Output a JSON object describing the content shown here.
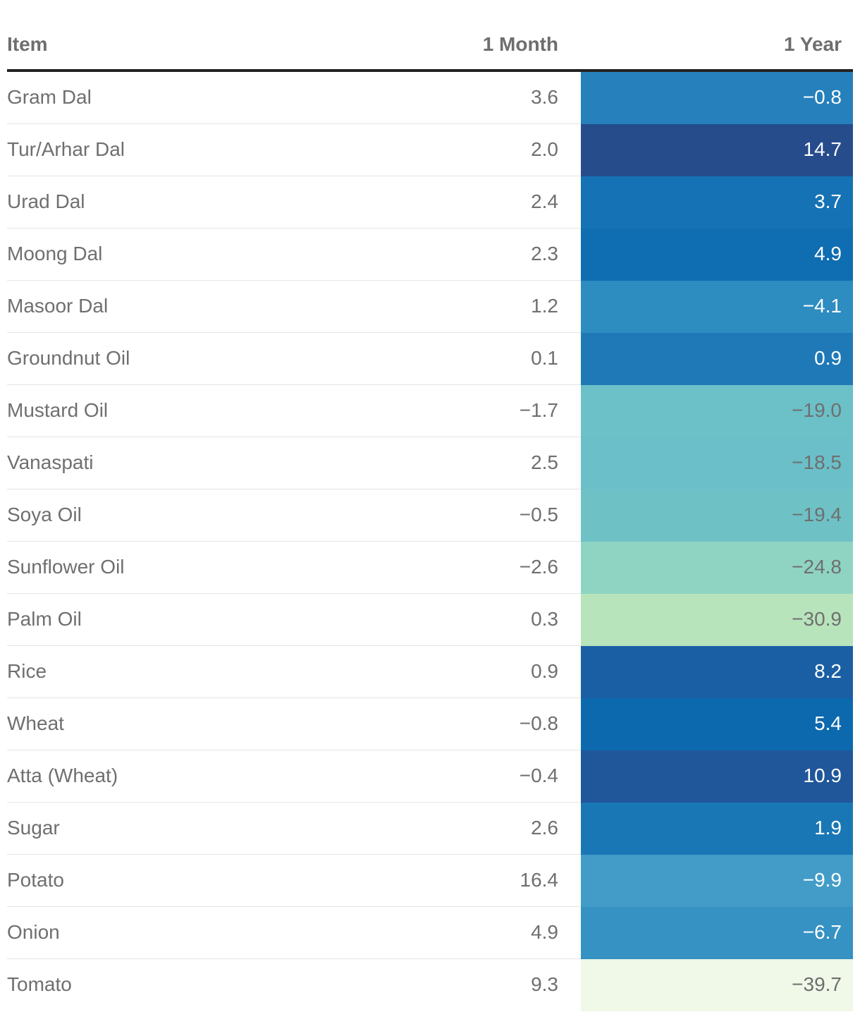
{
  "chart_data": {
    "type": "table",
    "columns": [
      "Item",
      "1 Month",
      "1 Year"
    ],
    "rows": [
      {
        "item": "Gram Dal",
        "month": "3.6",
        "year": "−0.8",
        "year_value": -0.8,
        "color": "#2580bb",
        "text_color": "#ffffff"
      },
      {
        "item": "Tur/Arhar Dal",
        "month": "2.0",
        "year": "14.7",
        "year_value": 14.7,
        "color": "#264c8c",
        "text_color": "#ffffff"
      },
      {
        "item": "Urad Dal",
        "month": "2.4",
        "year": "3.7",
        "year_value": 3.7,
        "color": "#1572b4",
        "text_color": "#ffffff"
      },
      {
        "item": "Moong Dal",
        "month": "2.3",
        "year": "4.9",
        "year_value": 4.9,
        "color": "#0f6db1",
        "text_color": "#ffffff"
      },
      {
        "item": "Masoor Dal",
        "month": "1.2",
        "year": "−4.1",
        "year_value": -4.1,
        "color": "#2d8cc0",
        "text_color": "#ffffff"
      },
      {
        "item": "Groundnut Oil",
        "month": "0.1",
        "year": "0.9",
        "year_value": 0.9,
        "color": "#1f79b7",
        "text_color": "#ffffff"
      },
      {
        "item": "Mustard Oil",
        "month": "−1.7",
        "year": "−19.0",
        "year_value": -19.0,
        "color": "#6cc0c7",
        "text_color": "#6f6f6f"
      },
      {
        "item": "Vanaspati",
        "month": "2.5",
        "year": "−18.5",
        "year_value": -18.5,
        "color": "#6bbfc8",
        "text_color": "#6f6f6f"
      },
      {
        "item": "Soya Oil",
        "month": "−0.5",
        "year": "−19.4",
        "year_value": -19.4,
        "color": "#6ec2c6",
        "text_color": "#6f6f6f"
      },
      {
        "item": "Sunflower Oil",
        "month": "−2.6",
        "year": "−24.8",
        "year_value": -24.8,
        "color": "#8fd4c3",
        "text_color": "#6f6f6f"
      },
      {
        "item": "Palm Oil",
        "month": "0.3",
        "year": "−30.9",
        "year_value": -30.9,
        "color": "#b8e4bc",
        "text_color": "#6f6f6f"
      },
      {
        "item": "Rice",
        "month": "0.9",
        "year": "8.2",
        "year_value": 8.2,
        "color": "#1a5fa4",
        "text_color": "#ffffff"
      },
      {
        "item": "Wheat",
        "month": "−0.8",
        "year": "5.4",
        "year_value": 5.4,
        "color": "#0c69ae",
        "text_color": "#ffffff"
      },
      {
        "item": "Atta (Wheat)",
        "month": "−0.4",
        "year": "10.9",
        "year_value": 10.9,
        "color": "#20579a",
        "text_color": "#ffffff"
      },
      {
        "item": "Sugar",
        "month": "2.6",
        "year": "1.9",
        "year_value": 1.9,
        "color": "#1a77b6",
        "text_color": "#ffffff"
      },
      {
        "item": "Potato",
        "month": "16.4",
        "year": "−9.9",
        "year_value": -9.9,
        "color": "#429cc7",
        "text_color": "#ffffff"
      },
      {
        "item": "Onion",
        "month": "4.9",
        "year": "−6.7",
        "year_value": -6.7,
        "color": "#3592c3",
        "text_color": "#ffffff"
      },
      {
        "item": "Tomato",
        "month": "9.3",
        "year": "−39.7",
        "year_value": -39.7,
        "color": "#f0f8e8",
        "text_color": "#6f6f6f"
      }
    ]
  }
}
